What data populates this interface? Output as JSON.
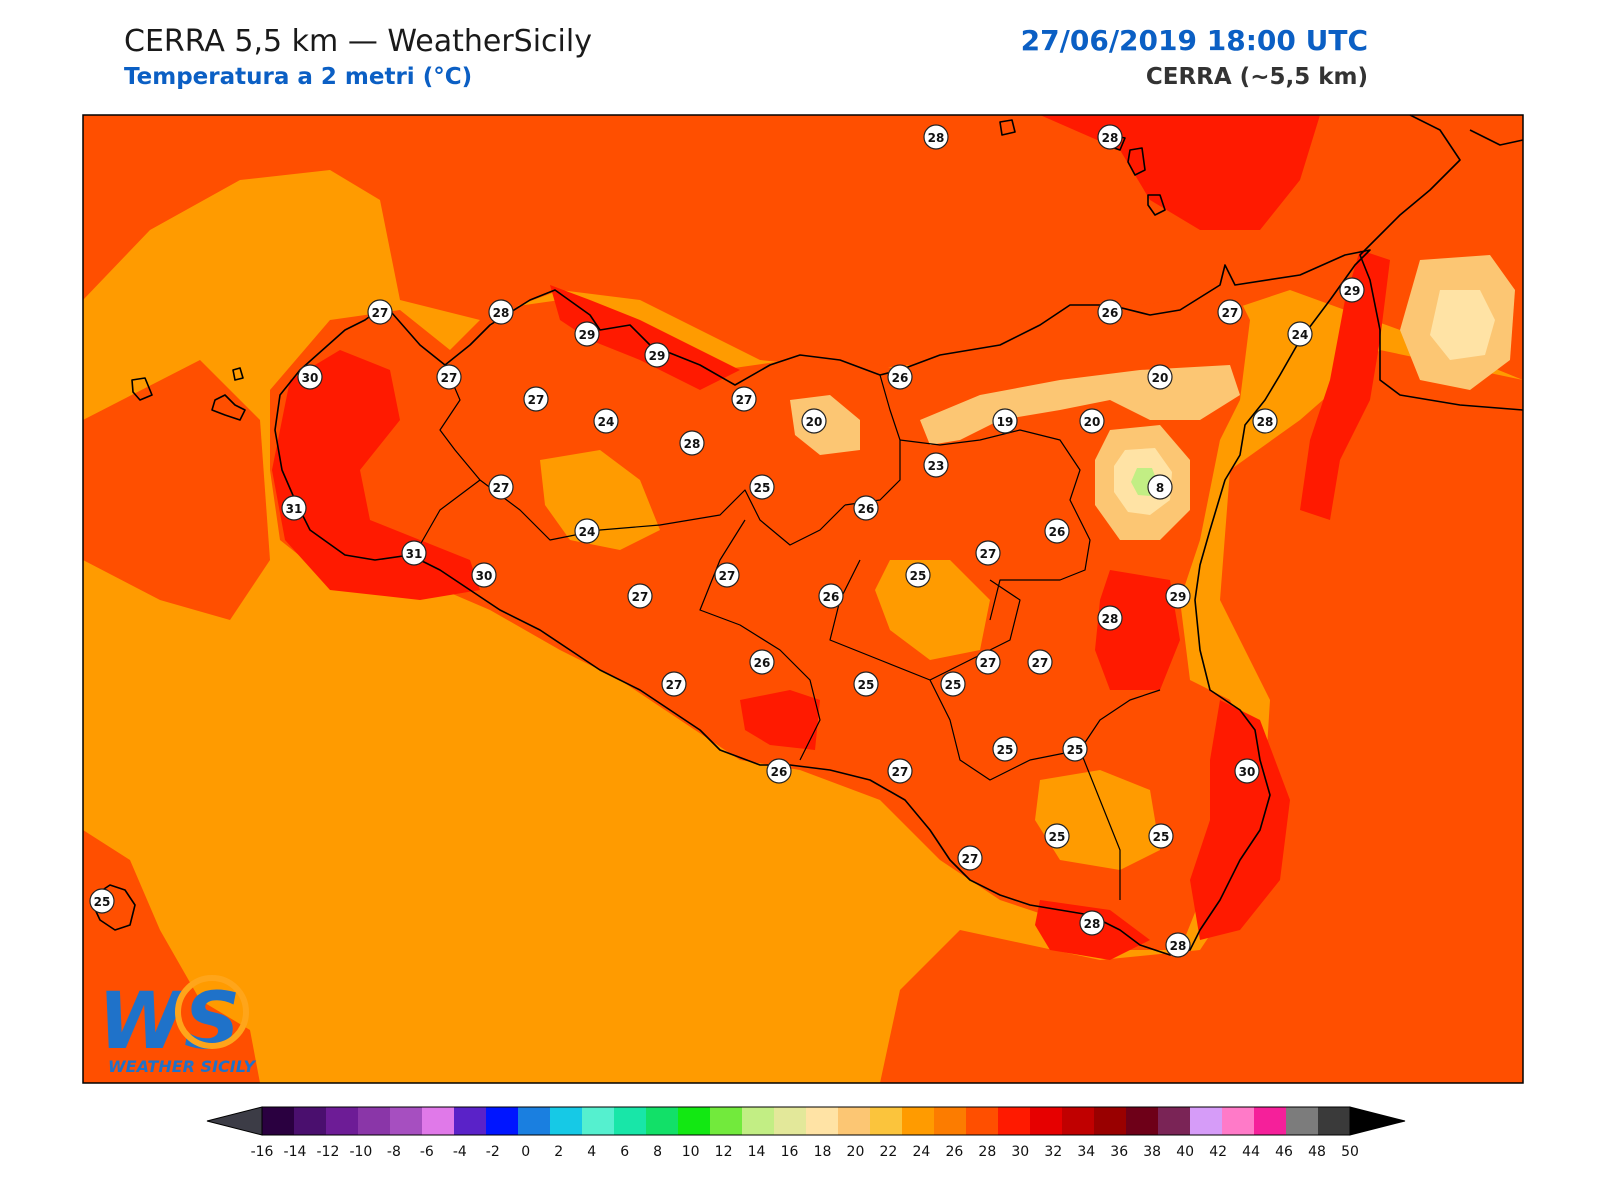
{
  "header": {
    "title_left": "CERRA 5,5 km — WeatherSicily",
    "subtitle_left": "Temperatura a 2 metri (°C)",
    "title_right": "27/06/2019 18:00 UTC",
    "subtitle_right": "CERRA (~5,5 km)"
  },
  "logo": {
    "mark": "WS",
    "text": "WEATHER SICILY"
  },
  "colorbar": {
    "ticks": [
      "-16",
      "-14",
      "-12",
      "-10",
      "-8",
      "-6",
      "-4",
      "-2",
      "0",
      "2",
      "4",
      "6",
      "8",
      "10",
      "12",
      "14",
      "16",
      "18",
      "20",
      "22",
      "24",
      "26",
      "28",
      "30",
      "32",
      "34",
      "36",
      "38",
      "40",
      "42",
      "44",
      "46",
      "48",
      "50"
    ],
    "colors": [
      "#2a0040",
      "#4a0f6e",
      "#6d1c96",
      "#8a36a8",
      "#a64fc0",
      "#e079e9",
      "#5a22c8",
      "#0015ff",
      "#1a7fe0",
      "#16c9e6",
      "#55f0cf",
      "#18e6a8",
      "#12e068",
      "#12e812",
      "#72ea3c",
      "#c2ee84",
      "#e3e89a",
      "#ffe3a5",
      "#fcc673",
      "#fbc43c",
      "#ff9b00",
      "#fc7c00",
      "#ff4f00",
      "#ff1a00",
      "#e60000",
      "#c00000",
      "#990000",
      "#6e0018",
      "#7a2456",
      "#d69cf8",
      "#ff7ac8",
      "#f5209a",
      "#7c7c7c",
      "#3a3a3a"
    ],
    "under_color": "#3c3c46",
    "over_color": "#000000"
  },
  "map": {
    "legend_unit": "°C",
    "palette": {
      "sea": "#ff9b00",
      "land": "#ff4f00",
      "hot": "#ff1a00",
      "cool": "#fcc673",
      "mild": "#ffe3a5",
      "cold": "#c2ee84"
    },
    "stations": [
      "28",
      "28",
      "27",
      "28",
      "29",
      "29",
      "30",
      "27",
      "27",
      "24",
      "28",
      "27",
      "20",
      "26",
      "26",
      "27",
      "29",
      "24",
      "20",
      "19",
      "20",
      "28",
      "23",
      "8",
      "27",
      "31",
      "31",
      "30",
      "24",
      "25",
      "26",
      "26",
      "27",
      "27",
      "27",
      "25",
      "27",
      "29",
      "26",
      "26",
      "25",
      "27",
      "28",
      "27",
      "25",
      "25",
      "25",
      "30",
      "26",
      "27",
      "25",
      "25",
      "27",
      "28",
      "28",
      "25"
    ]
  }
}
